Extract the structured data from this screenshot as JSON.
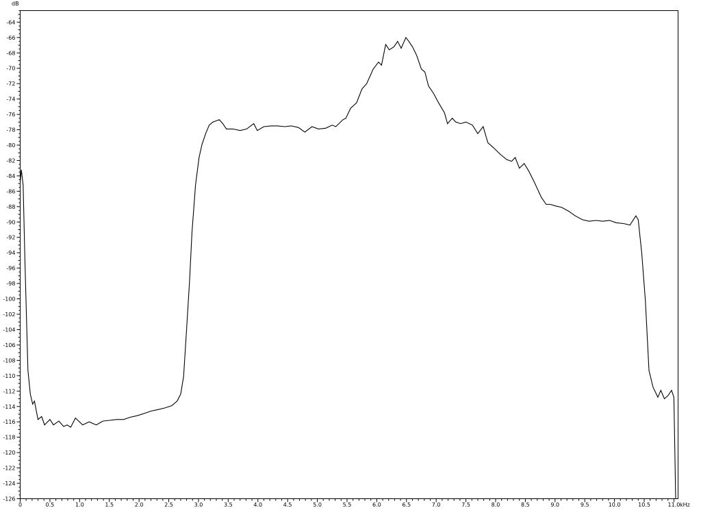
{
  "chart_data": {
    "type": "line",
    "title": "",
    "xlabel": "kHz",
    "ylabel": "dB",
    "xlim": [
      0,
      11.07
    ],
    "ylim": [
      -126,
      -62.5
    ],
    "x_ticks": [
      "0",
      "0.5",
      "1.0",
      "1.5",
      "2.0",
      "2.5",
      "3.0",
      "3.5",
      "4.0",
      "4.5",
      "5.0",
      "5.5",
      "6.0",
      "6.5",
      "7.0",
      "7.5",
      "8.0",
      "8.5",
      "9.0",
      "9.5",
      "10.0",
      "10.5",
      "11.0"
    ],
    "y_ticks": [
      "-64",
      "-66",
      "-68",
      "-70",
      "-72",
      "-74",
      "-76",
      "-78",
      "-80",
      "-82",
      "-84",
      "-86",
      "-88",
      "-90",
      "-92",
      "-94",
      "-96",
      "-98",
      "-100",
      "-102",
      "-104",
      "-106",
      "-108",
      "-110",
      "-112",
      "-114",
      "-116",
      "-118",
      "-120",
      "-122",
      "-124",
      "-126"
    ],
    "grid": false,
    "line_color": "#000000",
    "series": [
      {
        "x": [
          0,
          0.02,
          0.05,
          0.08,
          0.13,
          0.17,
          0.21,
          0.24,
          0.3,
          0.36,
          0.41,
          0.5,
          0.56,
          0.65,
          0.73,
          0.79,
          0.85,
          0.93,
          1.05,
          1.16,
          1.28,
          1.39,
          1.51,
          1.62,
          1.74,
          1.85,
          1.97,
          2.09,
          2.2,
          2.32,
          2.43,
          2.55,
          2.64,
          2.7,
          2.75,
          2.8,
          2.85,
          2.89,
          2.95,
          3.01,
          3.06,
          3.12,
          3.18,
          3.24,
          3.35,
          3.41,
          3.47,
          3.58,
          3.7,
          3.81,
          3.93,
          3.99,
          4.1,
          4.22,
          4.33,
          4.45,
          4.56,
          4.68,
          4.79,
          4.91,
          5.02,
          5.14,
          5.25,
          5.31,
          5.43,
          5.48,
          5.56,
          5.66,
          5.75,
          5.83,
          5.94,
          6.03,
          6.08,
          6.15,
          6.21,
          6.29,
          6.35,
          6.41,
          6.49,
          6.54,
          6.6,
          6.67,
          6.75,
          6.81,
          6.87,
          6.95,
          7.04,
          7.14,
          7.19,
          7.27,
          7.33,
          7.41,
          7.5,
          7.61,
          7.7,
          7.79,
          7.87,
          7.96,
          8.08,
          8.19,
          8.27,
          8.33,
          8.4,
          8.48,
          8.56,
          8.65,
          8.77,
          8.85,
          8.92,
          9.0,
          9.11,
          9.23,
          9.34,
          9.46,
          9.57,
          9.69,
          9.8,
          9.92,
          10.03,
          10.15,
          10.26,
          10.36,
          10.4,
          10.46,
          10.52,
          10.58,
          10.65,
          10.73,
          10.78,
          10.84,
          10.9,
          10.96,
          11.0,
          11.03
        ],
        "y": [
          -84.8,
          -83.2,
          -85.2,
          -95.0,
          -109.3,
          -112.4,
          -113.7,
          -113.3,
          -115.7,
          -115.3,
          -116.4,
          -115.7,
          -116.4,
          -115.9,
          -116.6,
          -116.4,
          -116.7,
          -115.5,
          -116.4,
          -116.0,
          -116.4,
          -115.9,
          -115.8,
          -115.7,
          -115.7,
          -115.4,
          -115.2,
          -114.9,
          -114.6,
          -114.4,
          -114.2,
          -113.9,
          -113.3,
          -112.4,
          -110.1,
          -103.9,
          -97.7,
          -91.4,
          -85.2,
          -81.6,
          -79.9,
          -78.5,
          -77.4,
          -77.0,
          -76.7,
          -77.2,
          -77.9,
          -77.9,
          -78.1,
          -77.9,
          -77.2,
          -78.1,
          -77.6,
          -77.5,
          -77.5,
          -77.6,
          -77.5,
          -77.7,
          -78.3,
          -77.6,
          -77.9,
          -77.8,
          -77.4,
          -77.6,
          -76.7,
          -76.5,
          -75.2,
          -74.5,
          -72.7,
          -72.0,
          -70.1,
          -69.2,
          -69.6,
          -66.9,
          -67.6,
          -67.2,
          -66.5,
          -67.4,
          -66.0,
          -66.5,
          -67.2,
          -68.3,
          -70.1,
          -70.5,
          -72.3,
          -73.2,
          -74.5,
          -75.8,
          -77.2,
          -76.5,
          -77.0,
          -77.2,
          -77.0,
          -77.4,
          -78.5,
          -77.6,
          -79.7,
          -80.3,
          -81.2,
          -81.9,
          -82.1,
          -81.6,
          -83.0,
          -82.4,
          -83.4,
          -84.8,
          -86.8,
          -87.7,
          -87.7,
          -87.9,
          -88.1,
          -88.6,
          -89.2,
          -89.7,
          -89.9,
          -89.8,
          -89.9,
          -89.8,
          -90.1,
          -90.2,
          -90.4,
          -89.2,
          -89.7,
          -94.1,
          -100.3,
          -109.3,
          -111.5,
          -112.8,
          -111.9,
          -113.0,
          -112.6,
          -111.9,
          -112.8,
          -126.0
        ]
      }
    ]
  }
}
